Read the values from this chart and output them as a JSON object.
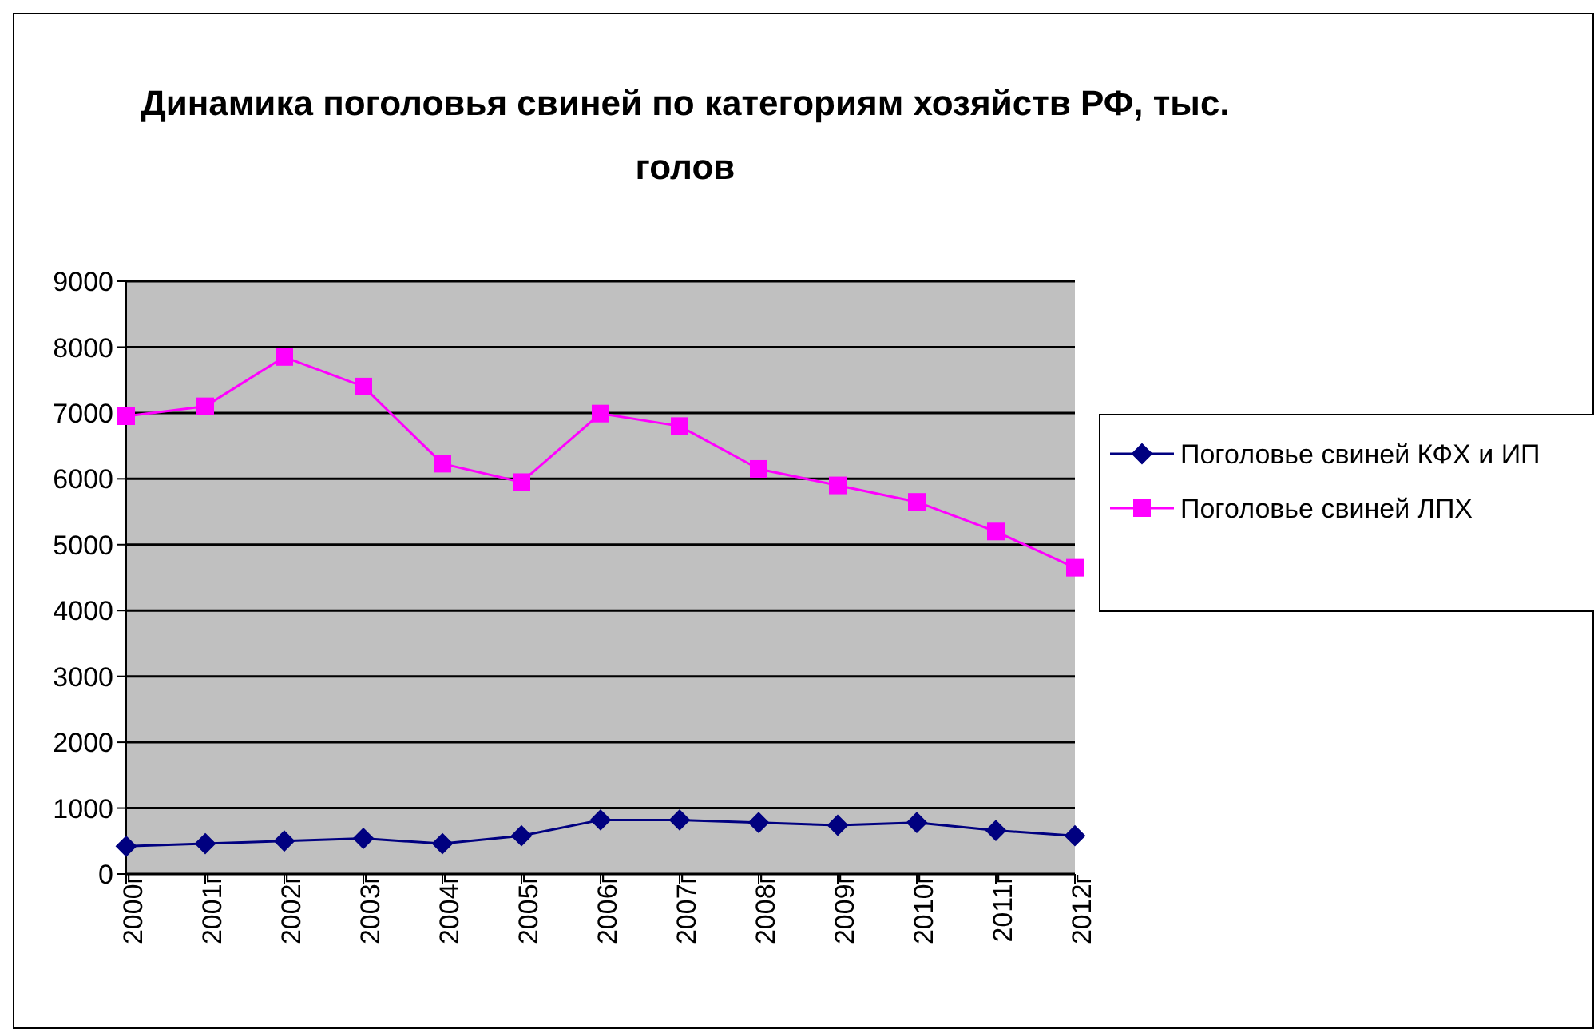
{
  "chart_data": {
    "type": "line",
    "title": "Динамика поголовья свиней по категориям хозяйств РФ, тыс. голов",
    "categories": [
      "2000г",
      "2001г",
      "2002г",
      "2003г",
      "2004г",
      "2005г",
      "2006г",
      "2007г",
      "2008г",
      "2009г",
      "2010г",
      "2011г",
      "2012г"
    ],
    "series": [
      {
        "name": "Поголовье свиней КФХ и ИП",
        "color": "#000080",
        "marker": "diamond",
        "values": [
          420,
          460,
          500,
          540,
          460,
          580,
          820,
          820,
          780,
          740,
          780,
          660,
          580
        ]
      },
      {
        "name": "Поголовье свиней ЛПХ",
        "color": "#ff00ff",
        "marker": "square",
        "values": [
          6950,
          7100,
          7850,
          7400,
          6230,
          5950,
          6990,
          6800,
          6150,
          5900,
          5650,
          5200,
          4650
        ]
      }
    ],
    "ylim": [
      0,
      9000
    ],
    "yticks": [
      0,
      1000,
      2000,
      3000,
      4000,
      5000,
      6000,
      7000,
      8000,
      9000
    ],
    "grid": "y",
    "legend": "right"
  }
}
